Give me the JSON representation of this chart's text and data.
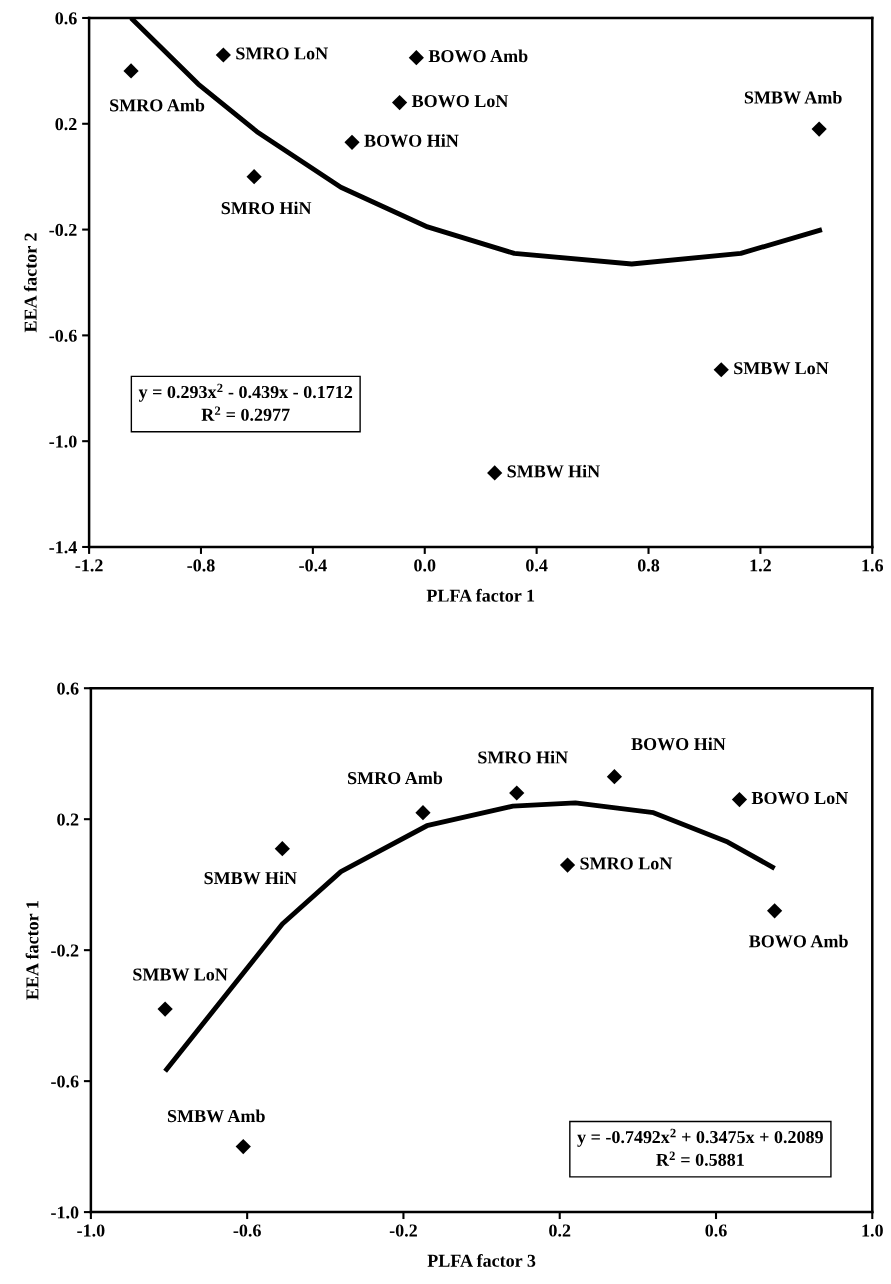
{
  "chart_data": [
    {
      "type": "scatter",
      "xlabel": "PLFA factor 1",
      "ylabel": "EEA factor 2",
      "xlim": [
        -1.2,
        1.6
      ],
      "ylim": [
        -1.4,
        0.6
      ],
      "xticks": [
        -1.2,
        -0.8,
        -0.4,
        {
          "value": 0,
          "label": "0.0"
        },
        0.4,
        0.8,
        1.2,
        1.6
      ],
      "yticks": [
        -1.4,
        {
          "value": -1,
          "label": "-1.0"
        },
        -0.6,
        -0.2,
        0.2,
        0.6
      ],
      "grid": false,
      "legend": false,
      "marker": "diamond",
      "series": [
        {
          "color": "#000000",
          "x": [
            -1.05,
            -0.72,
            -0.61,
            -0.03,
            -0.09,
            -0.26,
            1.41,
            1.06,
            0.25
          ],
          "values": [
            0.4,
            0.46,
            0.0,
            0.45,
            0.28,
            0.13,
            0.18,
            -0.73,
            -1.12
          ]
        },
        {
          "type": "line",
          "marker": "none",
          "color": "#000000",
          "line_style": "solid",
          "x": [
            -1.05,
            -0.81,
            -0.6,
            -0.3,
            0.01,
            0.32,
            0.74,
            1.13,
            1.42
          ],
          "values": [
            0.6,
            0.35,
            0.17,
            -0.04,
            -0.19,
            -0.29,
            -0.33,
            -0.29,
            -0.2
          ]
        }
      ],
      "annotations": [
        {
          "text": "SMRO Amb",
          "x": -1.05,
          "y": 0.4
        },
        {
          "text": "SMRO LoN",
          "x": -0.72,
          "y": 0.46
        },
        {
          "text": "SMRO HiN",
          "x": -0.61,
          "y": 0.0
        },
        {
          "text": "BOWO Amb",
          "x": -0.03,
          "y": 0.45
        },
        {
          "text": "BOWO LoN",
          "x": -0.09,
          "y": 0.28
        },
        {
          "text": "BOWO HiN",
          "x": -0.26,
          "y": 0.13
        },
        {
          "text": "SMBW Amb",
          "x": 1.41,
          "y": 0.18
        },
        {
          "text": "SMBW LoN",
          "x": 1.06,
          "y": -0.73
        },
        {
          "text": "SMBW HiN",
          "x": 0.25,
          "y": -1.12
        },
        "y = 0.293x$^{2}$ - 0.439x - 0.1712\nR$^{2}$ = 0.2977"
      ]
    },
    {
      "type": "scatter",
      "xlabel": "PLFA factor 3",
      "ylabel": "EEA factor 1",
      "xlim": [
        -1.0,
        1.0
      ],
      "ylim": [
        -1.0,
        0.6
      ],
      "xticks": [
        {
          "value": -1,
          "label": "-1.0"
        },
        -0.6,
        -0.2,
        0.2,
        0.6,
        {
          "value": 1,
          "label": "1.0"
        }
      ],
      "yticks": [
        {
          "value": -1,
          "label": "-1.0"
        },
        -0.6,
        -0.2,
        0.2,
        0.6
      ],
      "grid": false,
      "legend": false,
      "marker": "diamond",
      "series": [
        {
          "color": "#000000",
          "x": [
            -0.51,
            -0.15,
            0.09,
            0.34,
            0.66,
            0.22,
            0.75,
            -0.81,
            -0.61
          ],
          "values": [
            0.11,
            0.22,
            0.28,
            0.33,
            0.26,
            0.06,
            -0.08,
            -0.38,
            -0.8
          ]
        },
        {
          "type": "line",
          "marker": "none",
          "color": "#000000",
          "line_style": "solid",
          "x": [
            -0.81,
            -0.65,
            -0.51,
            -0.36,
            -0.14,
            0.08,
            0.24,
            0.44,
            0.63,
            0.75
          ],
          "values": [
            -0.57,
            -0.33,
            -0.12,
            0.04,
            0.18,
            0.24,
            0.25,
            0.22,
            0.13,
            0.05
          ]
        }
      ],
      "annotations": [
        {
          "text": "SMBW HiN",
          "x": -0.51,
          "y": 0.11
        },
        {
          "text": "SMRO Amb",
          "x": -0.15,
          "y": 0.22
        },
        {
          "text": "SMRO HiN",
          "x": 0.09,
          "y": 0.28
        },
        {
          "text": "BOWO HiN",
          "x": 0.34,
          "y": 0.33
        },
        {
          "text": "BOWO LoN",
          "x": 0.66,
          "y": 0.26
        },
        {
          "text": "SMRO LoN",
          "x": 0.22,
          "y": 0.06
        },
        {
          "text": "BOWO Amb",
          "x": 0.75,
          "y": -0.08
        },
        {
          "text": "SMBW LoN",
          "x": -0.81,
          "y": -0.38
        },
        {
          "text": "SMBW Amb",
          "x": -0.61,
          "y": -0.8
        },
        "y = -0.7492x$^{2}$ + 0.3475x + 0.2089\nR$^{2}$ = 0.5881"
      ]
    }
  ]
}
